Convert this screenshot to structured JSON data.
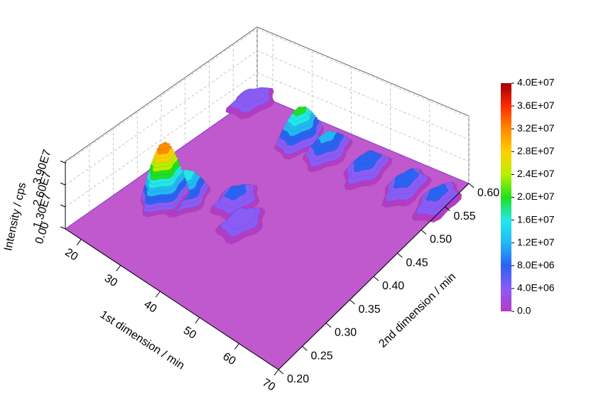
{
  "chart_data": {
    "type": "surface3d",
    "xlabel": "1st dimension / min",
    "ylabel": "2nd dimension / min",
    "zlabel": "Intensity / cps",
    "xlim": [
      16,
      70
    ],
    "xticks": [
      20,
      30,
      40,
      50,
      60,
      70
    ],
    "ylim": [
      0.2,
      0.6
    ],
    "yticks": [
      {
        "value": 0.2,
        "label": "0.20"
      },
      0.25,
      {
        "value": 0.3,
        "label": "0.30"
      },
      0.35,
      {
        "value": 0.4,
        "label": "0.40"
      },
      0.45,
      {
        "value": 0.5,
        "label": "0.50"
      },
      0.55,
      {
        "value": 0.6,
        "label": "0.60"
      }
    ],
    "zlim": [
      0,
      40000000
    ],
    "zticks": [
      {
        "value": 0,
        "label": "0.00"
      },
      {
        "value": 13000000,
        "label": "1.30E7"
      },
      {
        "value": 26000000,
        "label": "2.60E7"
      },
      {
        "value": 39000000,
        "label": "3.90E7"
      }
    ],
    "grid": true,
    "colorscale": [
      "#b43cc4",
      "#8a5cf6",
      "#2a62f2",
      "#22b8f4",
      "#22e8e8",
      "#20e020",
      "#b8f000",
      "#ffd000",
      "#ff8a00",
      "#ff2a00",
      "#a00000"
    ],
    "colorbar_ticks": [
      {
        "value": 0,
        "label": "0.0"
      },
      {
        "value": 4000000,
        "label": "4.0E+06"
      },
      {
        "value": 8000000,
        "label": "8.0E+06"
      },
      {
        "value": 12000000,
        "label": "1.2E+07"
      },
      {
        "value": 16000000,
        "label": "1.6E+07"
      },
      {
        "value": 20000000,
        "label": "2.0E+07"
      },
      {
        "value": 24000000,
        "label": "2.4E+07"
      },
      {
        "value": 28000000,
        "label": "2.8E+07"
      },
      {
        "value": 32000000,
        "label": "3.2E+07"
      },
      {
        "value": 36000000,
        "label": "3.6E+07"
      },
      {
        "value": 40000000,
        "label": "4.0E+07"
      }
    ],
    "peaks": {
      "x": [
        17,
        33,
        40,
        50,
        60,
        68,
        35,
        40,
        27,
        24
      ],
      "y": [
        0.58,
        0.55,
        0.55,
        0.55,
        0.55,
        0.55,
        0.4,
        0.37,
        0.36,
        0.34
      ],
      "values": [
        5000000,
        18000000,
        10000000,
        8000000,
        7000000,
        6000000,
        6000000,
        5000000,
        15000000,
        32000000
      ]
    }
  }
}
